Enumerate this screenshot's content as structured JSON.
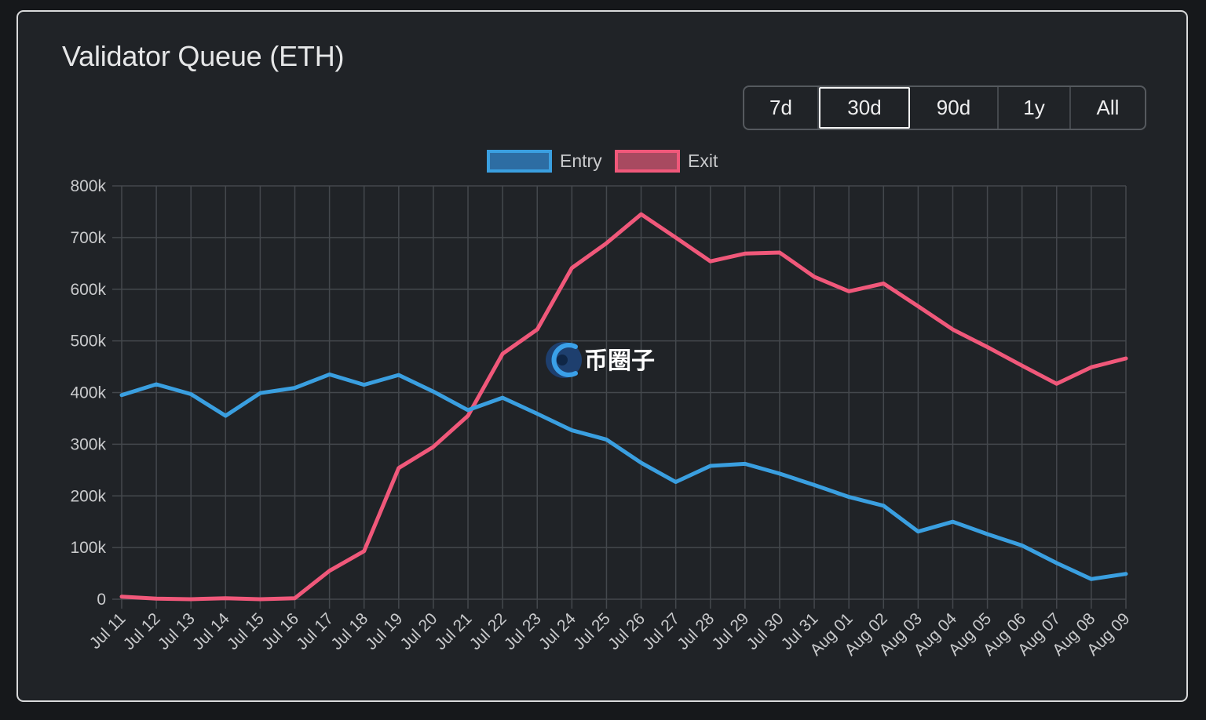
{
  "card": {
    "title": "Validator Queue (ETH)",
    "ranges": [
      "7d",
      "30d",
      "90d",
      "1y",
      "All"
    ],
    "active_range": "30d"
  },
  "watermark": {
    "text": "币圈子",
    "icon": "coin-logo-icon"
  },
  "colors": {
    "entry": "#3a9fe0",
    "exit": "#f0587a",
    "grid": "#44484d",
    "background": "#202327"
  },
  "chart_data": {
    "type": "line",
    "title": "",
    "xlabel": "",
    "ylabel": "",
    "ylim": [
      0,
      800000
    ],
    "yticks": [
      0,
      100000,
      200000,
      300000,
      400000,
      500000,
      600000,
      700000,
      800000
    ],
    "ytick_labels": [
      "0",
      "100k",
      "200k",
      "300k",
      "400k",
      "500k",
      "600k",
      "700k",
      "800k"
    ],
    "grid": true,
    "legend_position": "top-center",
    "x": [
      "Jul 11",
      "Jul 12",
      "Jul 13",
      "Jul 14",
      "Jul 15",
      "Jul 16",
      "Jul 17",
      "Jul 18",
      "Jul 19",
      "Jul 20",
      "Jul 21",
      "Jul 22",
      "Jul 23",
      "Jul 24",
      "Jul 25",
      "Jul 26",
      "Jul 27",
      "Jul 28",
      "Jul 29",
      "Jul 30",
      "Jul 31",
      "Aug 01",
      "Aug 02",
      "Aug 03",
      "Aug 04",
      "Aug 05",
      "Aug 06",
      "Aug 07",
      "Aug 08",
      "Aug 09"
    ],
    "series": [
      {
        "name": "Entry",
        "color": "#3a9fe0",
        "values": [
          395000,
          416000,
          397000,
          355000,
          399000,
          409000,
          435000,
          415000,
          434000,
          402000,
          366000,
          390000,
          359000,
          327000,
          309000,
          264000,
          227000,
          258000,
          262000,
          243000,
          221000,
          198000,
          181000,
          131000,
          150000,
          126000,
          104000,
          70000,
          39000,
          49000
        ]
      },
      {
        "name": "Exit",
        "color": "#f0587a",
        "values": [
          5000,
          1000,
          0,
          2000,
          0,
          2000,
          55000,
          93000,
          254000,
          295000,
          355000,
          475000,
          522000,
          641000,
          689000,
          745000,
          700000,
          654000,
          669000,
          671000,
          624000,
          596000,
          611000,
          567000,
          522000,
          488000,
          452000,
          417000,
          449000,
          466000
        ]
      }
    ]
  }
}
